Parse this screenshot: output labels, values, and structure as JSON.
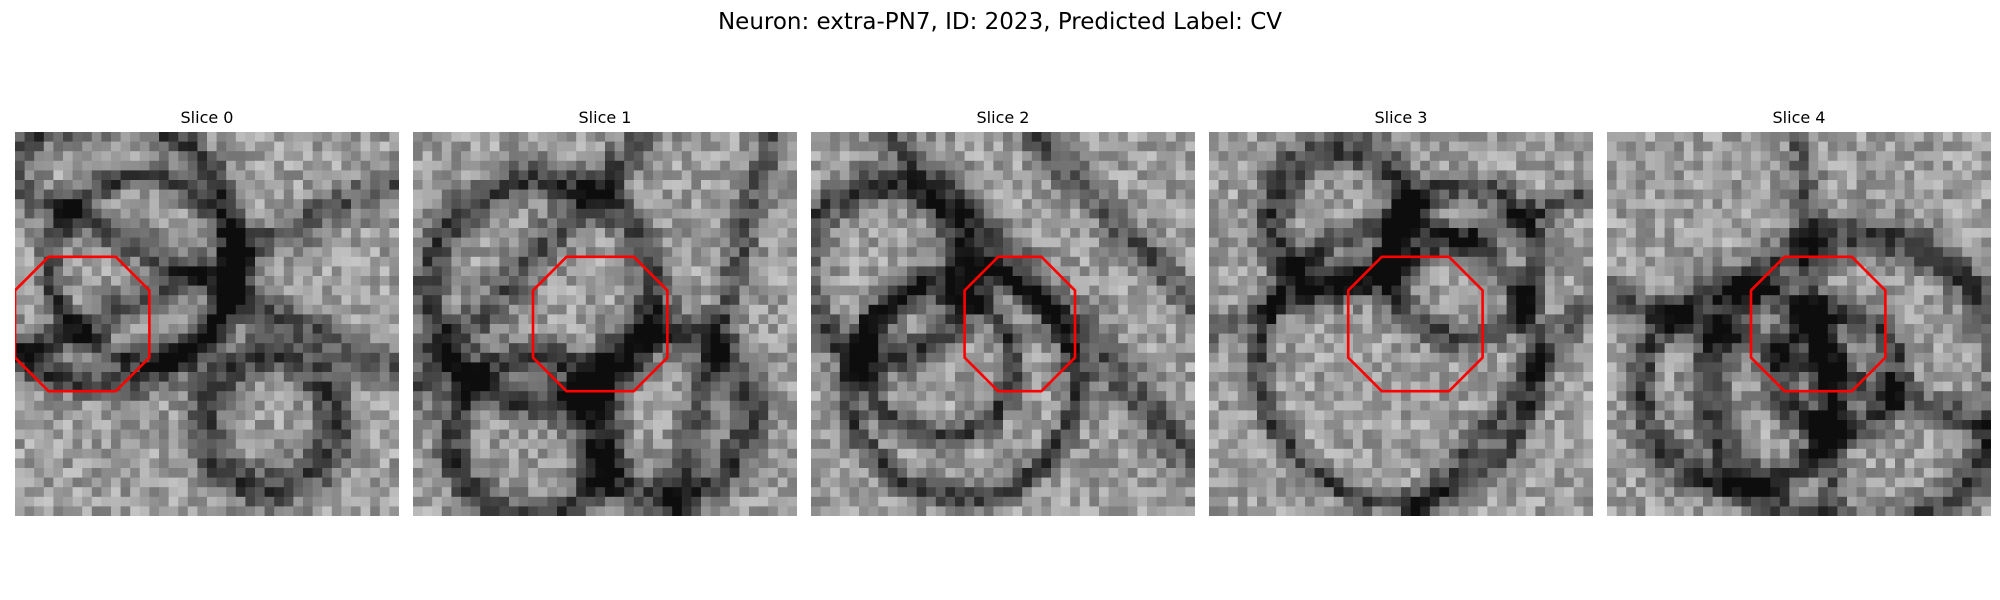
{
  "figure": {
    "title": "Neuron: extra-PN7, ID: 2023, Predicted Label: CV",
    "outline_color": "#ff0000",
    "slices": [
      {
        "label": "Slice 0",
        "outline": [
          [
            3.5,
            13
          ],
          [
            10.5,
            13
          ],
          [
            14,
            16.5
          ],
          [
            14,
            23.5
          ],
          [
            10.5,
            27
          ],
          [
            3.5,
            27
          ],
          [
            0,
            23.5
          ],
          [
            0,
            16.5
          ]
        ]
      },
      {
        "label": "Slice 1",
        "outline": [
          [
            16,
            13
          ],
          [
            23,
            13
          ],
          [
            26.5,
            16.5
          ],
          [
            26.5,
            23.5
          ],
          [
            23,
            27
          ],
          [
            16,
            27
          ],
          [
            12.5,
            23.5
          ],
          [
            12.5,
            16.5
          ]
        ]
      },
      {
        "label": "Slice 2",
        "outline": [
          [
            19.5,
            13
          ],
          [
            24,
            13
          ],
          [
            27.5,
            16.5
          ],
          [
            27.5,
            23.5
          ],
          [
            24,
            27
          ],
          [
            19.5,
            27
          ],
          [
            16,
            23.5
          ],
          [
            16,
            16.5
          ]
        ]
      },
      {
        "label": "Slice 3",
        "outline": [
          [
            18,
            13
          ],
          [
            25,
            13
          ],
          [
            28.5,
            16.5
          ],
          [
            28.5,
            23.5
          ],
          [
            25,
            27
          ],
          [
            18,
            27
          ],
          [
            14.5,
            23.5
          ],
          [
            14.5,
            16.5
          ]
        ]
      },
      {
        "label": "Slice 4",
        "outline": [
          [
            18.5,
            13
          ],
          [
            25.5,
            13
          ],
          [
            29,
            16.5
          ],
          [
            29,
            23.5
          ],
          [
            25.5,
            27
          ],
          [
            18.5,
            27
          ],
          [
            15,
            23.5
          ],
          [
            15,
            16.5
          ]
        ]
      }
    ]
  }
}
